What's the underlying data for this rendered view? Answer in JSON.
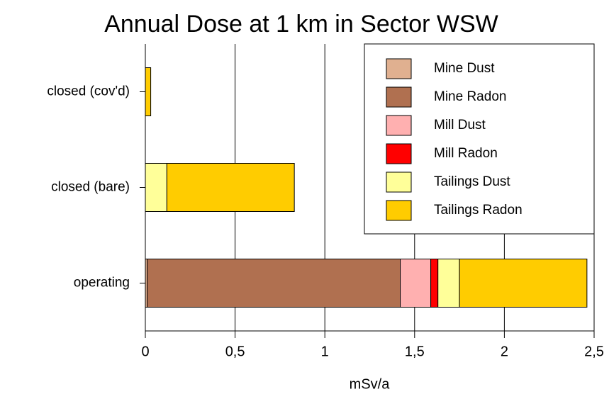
{
  "chart_data": {
    "type": "stacked-barh",
    "title": "Annual Dose at 1 km in Sector WSW",
    "x_label": "mSv/a",
    "categories": [
      "closed (cov'd)",
      "closed (bare)",
      "operating"
    ],
    "series": [
      {
        "name": "Mine Dust",
        "color": "#e0b090",
        "values": [
          0,
          0,
          0.01
        ]
      },
      {
        "name": "Mine Radon",
        "color": "#b07050",
        "values": [
          0,
          0,
          1.41
        ]
      },
      {
        "name": "Mill Dust",
        "color": "#ffb0b0",
        "values": [
          0,
          0,
          0.17
        ]
      },
      {
        "name": "Mill Radon",
        "color": "#ff0000",
        "values": [
          0,
          0,
          0.04
        ]
      },
      {
        "name": "Tailings Dust",
        "color": "#ffff99",
        "values": [
          0,
          0.12,
          0.12
        ]
      },
      {
        "name": "Tailings Radon",
        "color": "#ffcc00",
        "values": [
          0.03,
          0.71,
          0.71
        ]
      }
    ],
    "xlim": [
      0,
      2.5
    ],
    "xticks": [
      0,
      {
        "value": 0.5,
        "label": "0,5"
      },
      1,
      {
        "value": 1.5,
        "label": "1,5"
      },
      2,
      {
        "value": 2.5,
        "label": "2,5"
      }
    ],
    "grid": true,
    "legend": "upper right"
  }
}
